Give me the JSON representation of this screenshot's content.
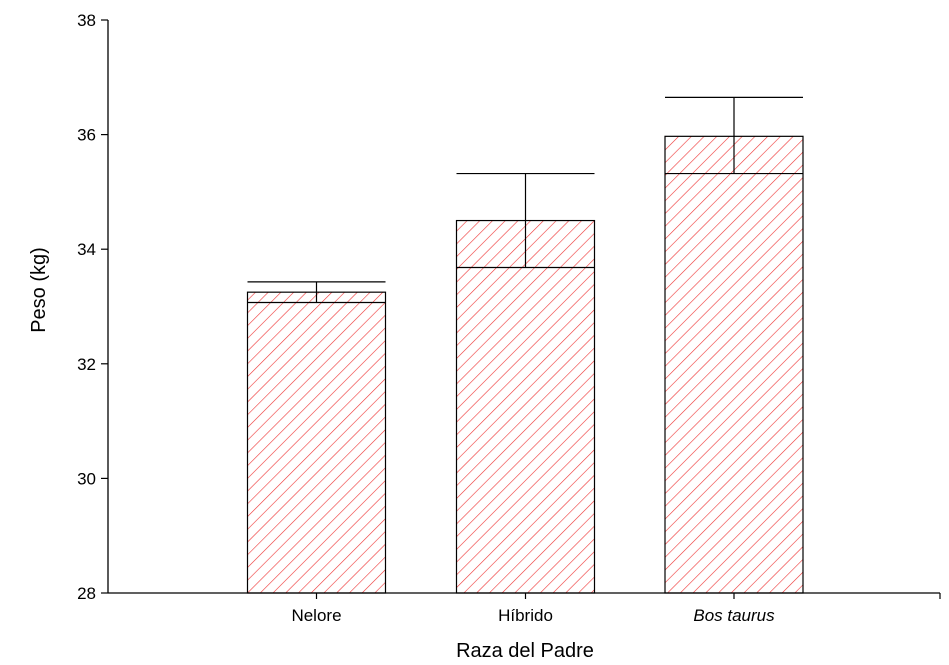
{
  "chart_data": {
    "type": "bar",
    "title": "",
    "xlabel": "Raza del Padre",
    "ylabel": "Peso (kg)",
    "ylim": [
      28,
      38
    ],
    "yticks": [
      28,
      30,
      32,
      34,
      36,
      38
    ],
    "grid": false,
    "legend": "none",
    "categories": [
      "Nelore",
      "Híbrido",
      "Bos taurus"
    ],
    "category_italic": [
      false,
      false,
      true
    ],
    "values": [
      33.25,
      34.5,
      35.97
    ],
    "error_lower": [
      33.07,
      33.68,
      35.32
    ],
    "error_upper": [
      33.43,
      35.32,
      36.65
    ],
    "bar_hatch_color": "#ee3333",
    "bar_edge_color": "#000000",
    "axis_color": "#000000"
  }
}
